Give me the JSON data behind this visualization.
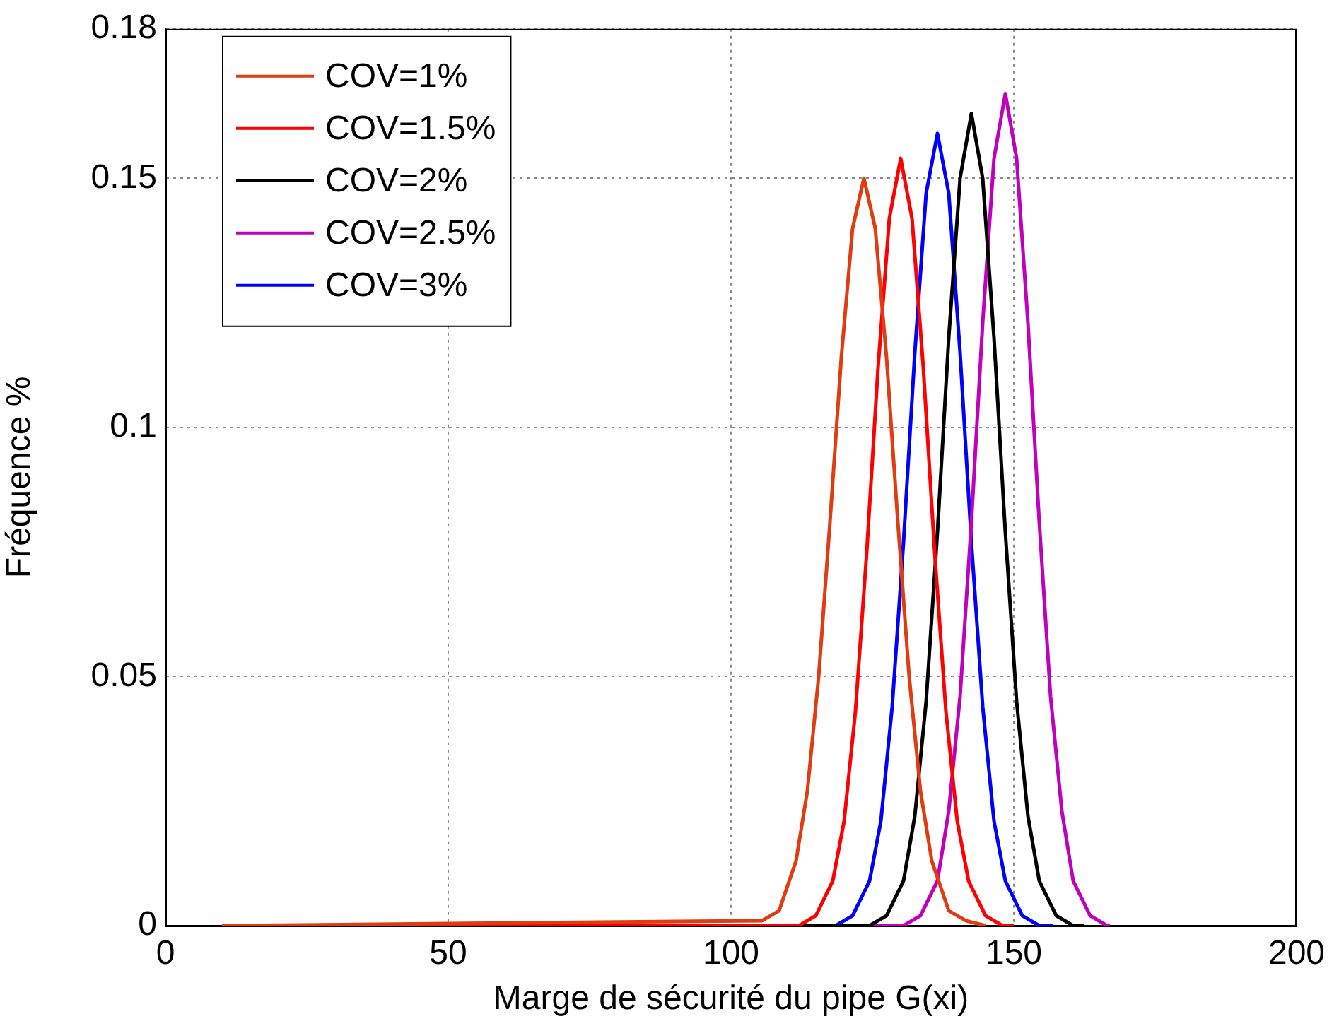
{
  "chart_data": {
    "type": "line",
    "xlabel": "Marge de sécurité du pipe G(xi)",
    "ylabel": "Fréquence %",
    "xlim": [
      0,
      200
    ],
    "xticks": [
      0,
      50,
      100,
      150,
      200
    ],
    "ylim": [
      0,
      0.18
    ],
    "yticks": [
      0,
      0.05,
      0.1,
      0.15,
      0.18
    ],
    "grid": true,
    "legend": "top left",
    "marker": "none",
    "line_style": "solid",
    "series": [
      {
        "name": "COV=1%",
        "color": "#e03c10",
        "x": [
          10,
          105.5,
          108.5,
          111.5,
          113.5,
          115.5,
          117.5,
          119.5,
          121.5,
          123.5,
          125.5,
          127.5,
          129.5,
          131.5,
          133.5,
          135.5,
          138.5,
          141.5,
          145
        ],
        "values": [
          0,
          0.001,
          0.003,
          0.013,
          0.027,
          0.05,
          0.081,
          0.114,
          0.14,
          0.15,
          0.14,
          0.114,
          0.081,
          0.05,
          0.027,
          0.013,
          0.003,
          0.001,
          0
        ]
      },
      {
        "name": "COV=1.5%",
        "color": "#ff0000",
        "x": [
          22,
          112,
          115,
          118,
          120,
          122,
          124,
          126,
          128,
          130,
          132,
          134,
          136,
          138,
          140,
          142,
          145,
          148,
          150
        ],
        "values": [
          0,
          0,
          0.002,
          0.009,
          0.021,
          0.043,
          0.075,
          0.112,
          0.142,
          0.154,
          0.142,
          0.112,
          0.075,
          0.043,
          0.021,
          0.009,
          0.002,
          0,
          0
        ]
      },
      {
        "name": "COV=2%",
        "color": "#000000",
        "x": [
          45,
          124.5,
          127.5,
          130.5,
          132.5,
          134.5,
          136.5,
          138.5,
          140.5,
          142.5,
          144.5,
          146.5,
          148.5,
          150.5,
          152.5,
          154.5,
          157.5,
          160.5,
          162.5
        ],
        "values": [
          0,
          0,
          0.002,
          0.009,
          0.022,
          0.045,
          0.079,
          0.118,
          0.15,
          0.163,
          0.15,
          0.118,
          0.079,
          0.045,
          0.022,
          0.009,
          0.002,
          0,
          0
        ]
      },
      {
        "name": "COV=2.5%",
        "color": "#bf00bf",
        "x": [
          55,
          130.5,
          133.5,
          136.5,
          138.5,
          140.5,
          142.5,
          144.5,
          146.5,
          148.5,
          150.5,
          152.5,
          154.5,
          156.5,
          158.5,
          160.5,
          163.5,
          166.5,
          167
        ],
        "values": [
          0,
          0,
          0.002,
          0.009,
          0.023,
          0.046,
          0.081,
          0.121,
          0.154,
          0.167,
          0.154,
          0.121,
          0.081,
          0.046,
          0.023,
          0.009,
          0.002,
          0,
          0
        ]
      },
      {
        "name": "COV=3%",
        "color": "#0000ff",
        "x": [
          35,
          118.5,
          121.5,
          124.5,
          126.5,
          128.5,
          130.5,
          132.5,
          134.5,
          136.5,
          138.5,
          140.5,
          142.5,
          144.5,
          146.5,
          148.5,
          151.5,
          154.5,
          157
        ],
        "values": [
          0,
          0,
          0.002,
          0.009,
          0.021,
          0.044,
          0.077,
          0.115,
          0.147,
          0.159,
          0.147,
          0.115,
          0.077,
          0.044,
          0.021,
          0.009,
          0.002,
          0,
          0
        ]
      }
    ]
  }
}
